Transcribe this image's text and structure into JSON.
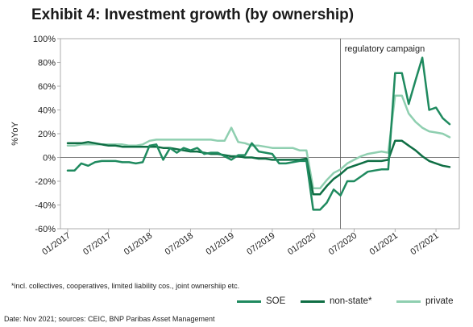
{
  "title": "Exhibit 4: Investment growth (by ownership)",
  "footnote": "*incl. collectives, cooperatives, limited liability cos., joint ownershiip etc.",
  "source": "Date: Nov 2021; sources: CEIC, BNP Paribas Asset Management",
  "chart_data": {
    "type": "line",
    "ylabel": "%YoY",
    "ylim": [
      -60,
      100
    ],
    "y_ticks": [
      "100%",
      "80%",
      "60%",
      "40%",
      "20%",
      "0%",
      "-20%",
      "-40%",
      "-60%"
    ],
    "x_ticks": [
      "01/2017",
      "07/2017",
      "01/2018",
      "07/2018",
      "01/2019",
      "07/2019",
      "01/2020",
      "07/2020",
      "01/2021",
      "07/2021"
    ],
    "annotation": "regulatory campaign",
    "annotation_x": "05/2020",
    "x": [
      "01/2017",
      "02/2017",
      "03/2017",
      "04/2017",
      "05/2017",
      "06/2017",
      "07/2017",
      "08/2017",
      "09/2017",
      "10/2017",
      "11/2017",
      "12/2017",
      "01/2018",
      "02/2018",
      "03/2018",
      "04/2018",
      "05/2018",
      "06/2018",
      "07/2018",
      "08/2018",
      "09/2018",
      "10/2018",
      "11/2018",
      "12/2018",
      "01/2019",
      "02/2019",
      "03/2019",
      "04/2019",
      "05/2019",
      "06/2019",
      "07/2019",
      "08/2019",
      "09/2019",
      "10/2019",
      "11/2019",
      "12/2019",
      "01/2020",
      "02/2020",
      "03/2020",
      "04/2020",
      "05/2020",
      "06/2020",
      "07/2020",
      "08/2020",
      "09/2020",
      "10/2020",
      "11/2020",
      "12/2020",
      "01/2021",
      "02/2021",
      "03/2021",
      "04/2021",
      "05/2021",
      "06/2021",
      "07/2021",
      "08/2021",
      "09/2021"
    ],
    "series": [
      {
        "name": "SOE",
        "color": "#1f8a5f",
        "width": 2.5,
        "values": [
          -11,
          -11,
          -5,
          -7,
          -4,
          -3,
          -3,
          -3,
          -4,
          -4,
          -5,
          -4,
          10,
          11,
          -2,
          8,
          4,
          8,
          6,
          8,
          3,
          4,
          4,
          1,
          -2,
          2,
          2,
          12,
          5,
          4,
          3,
          -5,
          -5,
          -4,
          -3,
          -3,
          -44,
          -44,
          -38,
          -27,
          -32,
          -20,
          -20,
          -16,
          -12,
          -11,
          -10,
          -10,
          71,
          71,
          45,
          65,
          84,
          40,
          42,
          33,
          28
        ]
      },
      {
        "name": "non-state*",
        "color": "#0f6e44",
        "width": 2.5,
        "values": [
          12,
          12,
          12,
          13,
          12,
          11,
          10,
          10,
          9,
          9,
          9,
          9,
          9,
          9,
          8,
          8,
          7,
          6,
          5,
          5,
          4,
          3,
          3,
          2,
          1,
          1,
          0,
          0,
          -1,
          -1,
          -2,
          -2,
          -2,
          -2,
          -2,
          -1,
          -31,
          -31,
          -24,
          -18,
          -14,
          -9,
          -7,
          -5,
          -3,
          -3,
          -3,
          -2,
          14,
          14,
          10,
          6,
          1,
          -3,
          -5,
          -7,
          -8
        ]
      },
      {
        "name": "private",
        "color": "#8fcfb0",
        "width": 2.5,
        "values": [
          10,
          10,
          11,
          11,
          11,
          11,
          11,
          11,
          11,
          10,
          10,
          11,
          14,
          15,
          15,
          15,
          15,
          15,
          15,
          15,
          15,
          15,
          14,
          14,
          25,
          13,
          12,
          10,
          10,
          9,
          8,
          8,
          8,
          8,
          6,
          6,
          -26,
          -26,
          -19,
          -13,
          -10,
          -5,
          -2,
          1,
          3,
          4,
          5,
          4,
          52,
          52,
          37,
          30,
          25,
          22,
          21,
          20,
          17
        ]
      }
    ],
    "legend": "bottom-right",
    "grid": false
  }
}
